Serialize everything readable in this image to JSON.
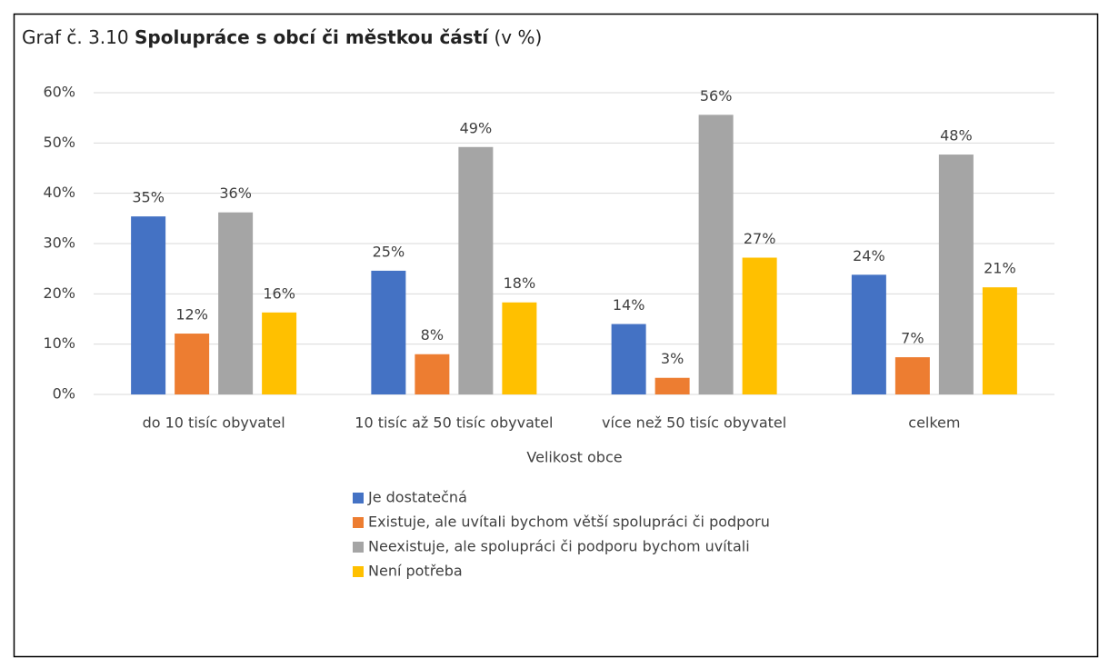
{
  "chart_data": {
    "type": "bar",
    "title": [
      "Graf č. 3.10",
      "Spolupráce s obcí či městkou částí",
      "(v %)"
    ],
    "x_label": "Velikost obce",
    "categories": [
      "do 10 tisíc obyvatel",
      "10 tisíc až 50 tisíc obyvatel",
      "více než 50 tisíc obyvatel",
      "celkem"
    ],
    "series": [
      {
        "name": "Je dostatečná",
        "color": "#4472c4",
        "values": [
          35.4,
          24.6,
          14.0,
          23.8
        ],
        "value_labels": [
          "35%",
          "25%",
          "14%",
          "24%"
        ]
      },
      {
        "name": "Existuje, ale uvítali bychom větší spolupráci či podporu",
        "color": "#ed7d31",
        "values": [
          12.1,
          8.0,
          3.3,
          7.4
        ],
        "value_labels": [
          "12%",
          "8%",
          "3%",
          "7%"
        ]
      },
      {
        "name": "Neexistuje, ale spolupráci či podporu bychom uvítali",
        "color": "#a5a5a5",
        "values": [
          36.2,
          49.2,
          55.6,
          47.7
        ],
        "value_labels": [
          "36%",
          "49%",
          "56%",
          "48%"
        ]
      },
      {
        "name": "Není potřeba",
        "color": "#ffc000",
        "values": [
          16.3,
          18.3,
          27.2,
          21.3
        ],
        "value_labels": [
          "16%",
          "18%",
          "27%",
          "21%"
        ]
      }
    ],
    "ylim": [
      0,
      60
    ],
    "yticks": [
      {
        "value": 0,
        "label": "0%"
      },
      {
        "value": 10,
        "label": "10%"
      },
      {
        "value": 20,
        "label": "20%"
      },
      {
        "value": 30,
        "label": "30%"
      },
      {
        "value": 40,
        "label": "40%"
      },
      {
        "value": 50,
        "label": "50%"
      },
      {
        "value": 60,
        "label": "60%"
      }
    ],
    "grid": true,
    "legend": "bottom"
  }
}
